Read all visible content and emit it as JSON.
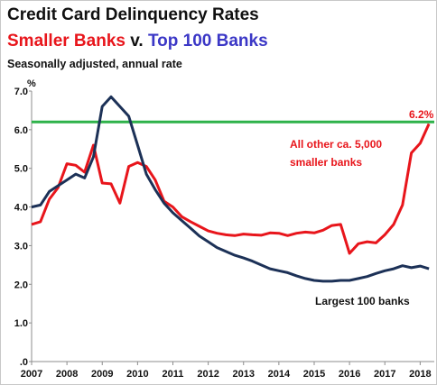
{
  "header": {
    "title": "Credit Card Delinquency Rates",
    "subtitle_part1": "Smaller Banks",
    "subtitle_part2": " v. ",
    "subtitle_part3": "Top 100 Banks",
    "note": "Seasonally adjusted, annual rate"
  },
  "chart_data": {
    "type": "line",
    "ylabel": "%",
    "ylim": [
      0,
      7
    ],
    "xlim": [
      2007,
      2018.4
    ],
    "yticks": [
      0,
      1,
      2,
      3,
      4,
      5,
      6,
      7
    ],
    "ytick_labels": [
      ".0",
      "1.0",
      "2.0",
      "3.0",
      "4.0",
      "5.0",
      "6.0",
      "7.0"
    ],
    "xticks": [
      2007,
      2008,
      2009,
      2010,
      2011,
      2012,
      2013,
      2014,
      2015,
      2016,
      2017,
      2018
    ],
    "xtick_labels": [
      "2007",
      "2008",
      "2009",
      "2010",
      "2011",
      "2012",
      "2013",
      "2014",
      "2015",
      "2016",
      "2017",
      "2018"
    ],
    "grid": false,
    "series": [
      {
        "name": "All other ca. 5,000 smaller banks",
        "color": "#e8151b",
        "x": [
          2007.0,
          2007.25,
          2007.5,
          2007.75,
          2008.0,
          2008.25,
          2008.5,
          2008.75,
          2009.0,
          2009.25,
          2009.5,
          2009.75,
          2010.0,
          2010.25,
          2010.5,
          2010.75,
          2011.0,
          2011.25,
          2011.5,
          2011.75,
          2012.0,
          2012.25,
          2012.5,
          2012.75,
          2013.0,
          2013.25,
          2013.5,
          2013.75,
          2014.0,
          2014.25,
          2014.5,
          2014.75,
          2015.0,
          2015.25,
          2015.5,
          2015.75,
          2016.0,
          2016.25,
          2016.5,
          2016.75,
          2017.0,
          2017.25,
          2017.5,
          2017.75,
          2018.0,
          2018.25
        ],
        "values": [
          3.55,
          3.62,
          4.2,
          4.5,
          5.12,
          5.08,
          4.9,
          5.6,
          4.62,
          4.6,
          4.1,
          5.05,
          5.15,
          5.05,
          4.7,
          4.15,
          4.0,
          3.75,
          3.62,
          3.5,
          3.38,
          3.32,
          3.28,
          3.26,
          3.3,
          3.28,
          3.27,
          3.33,
          3.32,
          3.26,
          3.32,
          3.35,
          3.33,
          3.4,
          3.52,
          3.55,
          2.8,
          3.05,
          3.1,
          3.07,
          3.28,
          3.55,
          4.05,
          5.4,
          5.65,
          6.15
        ]
      },
      {
        "name": "Largest 100 banks",
        "color": "#1c3157",
        "x": [
          2007.0,
          2007.25,
          2007.5,
          2007.75,
          2008.0,
          2008.25,
          2008.5,
          2008.75,
          2009.0,
          2009.25,
          2009.5,
          2009.75,
          2010.0,
          2010.25,
          2010.5,
          2010.75,
          2011.0,
          2011.25,
          2011.5,
          2011.75,
          2012.0,
          2012.25,
          2012.5,
          2012.75,
          2013.0,
          2013.25,
          2013.5,
          2013.75,
          2014.0,
          2014.25,
          2014.5,
          2014.75,
          2015.0,
          2015.25,
          2015.5,
          2015.75,
          2016.0,
          2016.25,
          2016.5,
          2016.75,
          2017.0,
          2017.25,
          2017.5,
          2017.75,
          2018.0,
          2018.25
        ],
        "values": [
          4.0,
          4.05,
          4.4,
          4.55,
          4.7,
          4.85,
          4.75,
          5.3,
          6.6,
          6.85,
          6.6,
          6.35,
          5.6,
          4.85,
          4.45,
          4.1,
          3.85,
          3.65,
          3.45,
          3.25,
          3.1,
          2.95,
          2.85,
          2.75,
          2.68,
          2.6,
          2.5,
          2.4,
          2.35,
          2.3,
          2.22,
          2.15,
          2.1,
          2.08,
          2.08,
          2.1,
          2.1,
          2.15,
          2.2,
          2.28,
          2.35,
          2.4,
          2.48,
          2.43,
          2.47,
          2.4
        ]
      }
    ],
    "reference_line": {
      "value": 6.2,
      "color": "#2eb24a",
      "label": "6.2%"
    },
    "annotations": {
      "red_line1": "All other ca. 5,000",
      "red_line2": "smaller banks",
      "dark_label": "Largest 100 banks",
      "reference_label": "6.2%"
    }
  }
}
